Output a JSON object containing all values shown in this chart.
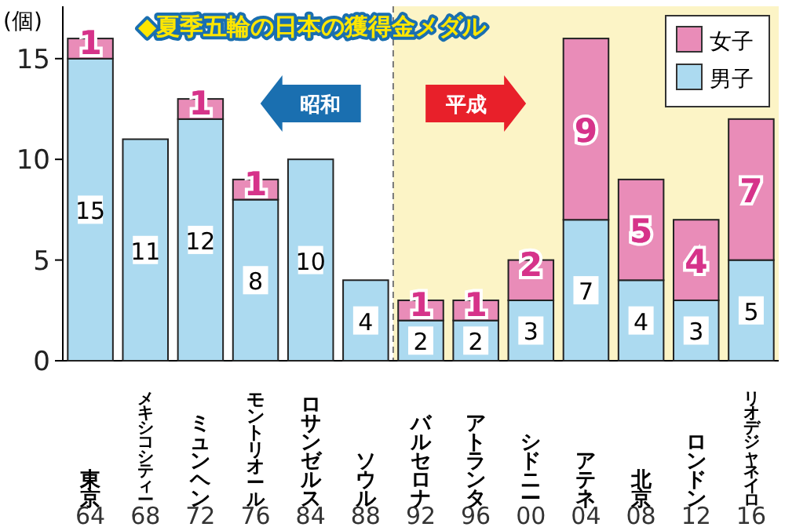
{
  "chart_data": {
    "type": "bar",
    "stacked": true,
    "title": "◆夏季五輪の日本の獲得金メダル",
    "ylabel": "(個)",
    "categories": [
      "東京64",
      "メキシコシティー68",
      "ミュンヘン72",
      "モントリオール76",
      "ロサンゼルス84",
      "ソウル88",
      "バルセロナ92",
      "アトランタ96",
      "シドニー00",
      "アテネ04",
      "北京08",
      "ロンドン12",
      "リオデジャネイロ16"
    ],
    "series": [
      {
        "name": "男子",
        "color": "#acdaf0",
        "values": [
          15,
          11,
          12,
          8,
          10,
          4,
          2,
          2,
          3,
          7,
          4,
          3,
          5
        ]
      },
      {
        "name": "女子",
        "color": "#e98cb8",
        "values": [
          1,
          null,
          1,
          1,
          null,
          null,
          1,
          1,
          2,
          9,
          5,
          4,
          7
        ]
      }
    ],
    "ylim": [
      0,
      17.6
    ],
    "yticks": [
      0,
      5,
      10,
      15
    ],
    "data_labels": true,
    "legend": "top right",
    "bands": [
      {
        "axis": "x",
        "from": "バルセロナ92",
        "to": "リオデジャネイロ16",
        "color": "#fcf4c6"
      }
    ],
    "annotations": [
      "昭和",
      "平成"
    ]
  }
}
